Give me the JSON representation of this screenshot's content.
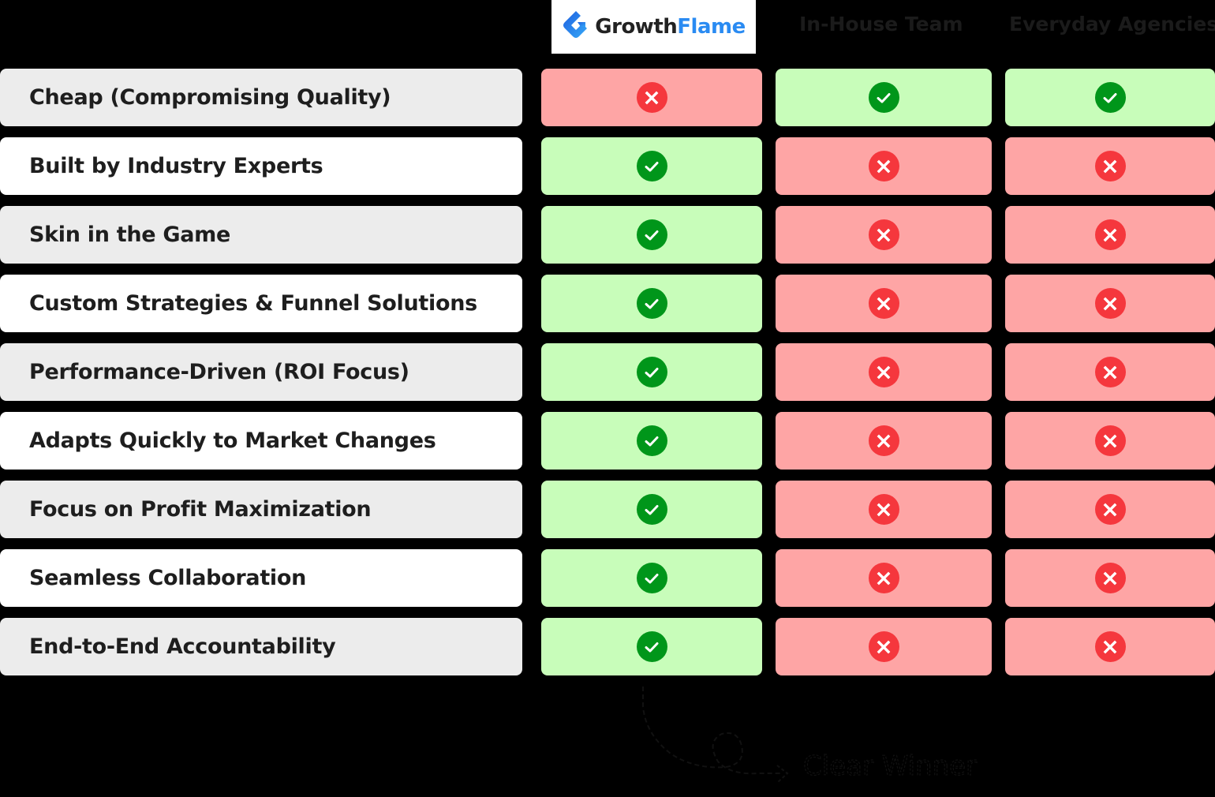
{
  "header": {
    "brand": {
      "part1": "Growth",
      "part2": "Flame",
      "icon": "growthflame-logo-icon"
    },
    "columns": [
      "GrowthFlame",
      "In-House Team",
      "Everyday Agencies"
    ]
  },
  "colors": {
    "yes_bg": "#c8fdba",
    "no_bg": "#fea5a5",
    "check": "#00961a",
    "cross": "#f5373d",
    "brand_blue": "#2a8bf2"
  },
  "rows": [
    {
      "label": "Cheap (Compromising Quality)",
      "values": [
        "no",
        "yes",
        "yes"
      ]
    },
    {
      "label": "Built by Industry Experts",
      "values": [
        "yes",
        "no",
        "no"
      ]
    },
    {
      "label": "Skin in the Game",
      "values": [
        "yes",
        "no",
        "no"
      ]
    },
    {
      "label": "Custom Strategies & Funnel Solutions",
      "values": [
        "yes",
        "no",
        "no"
      ]
    },
    {
      "label": "Performance-Driven (ROI Focus)",
      "values": [
        "yes",
        "no",
        "no"
      ]
    },
    {
      "label": "Adapts Quickly to Market Changes",
      "values": [
        "yes",
        "no",
        "no"
      ]
    },
    {
      "label": "Focus on Profit Maximization",
      "values": [
        "yes",
        "no",
        "no"
      ]
    },
    {
      "label": "Seamless Collaboration",
      "values": [
        "yes",
        "no",
        "no"
      ]
    },
    {
      "label": "End-to-End Accountability",
      "values": [
        "yes",
        "no",
        "no"
      ]
    }
  ],
  "annotation": {
    "text": "Clear Winner"
  }
}
